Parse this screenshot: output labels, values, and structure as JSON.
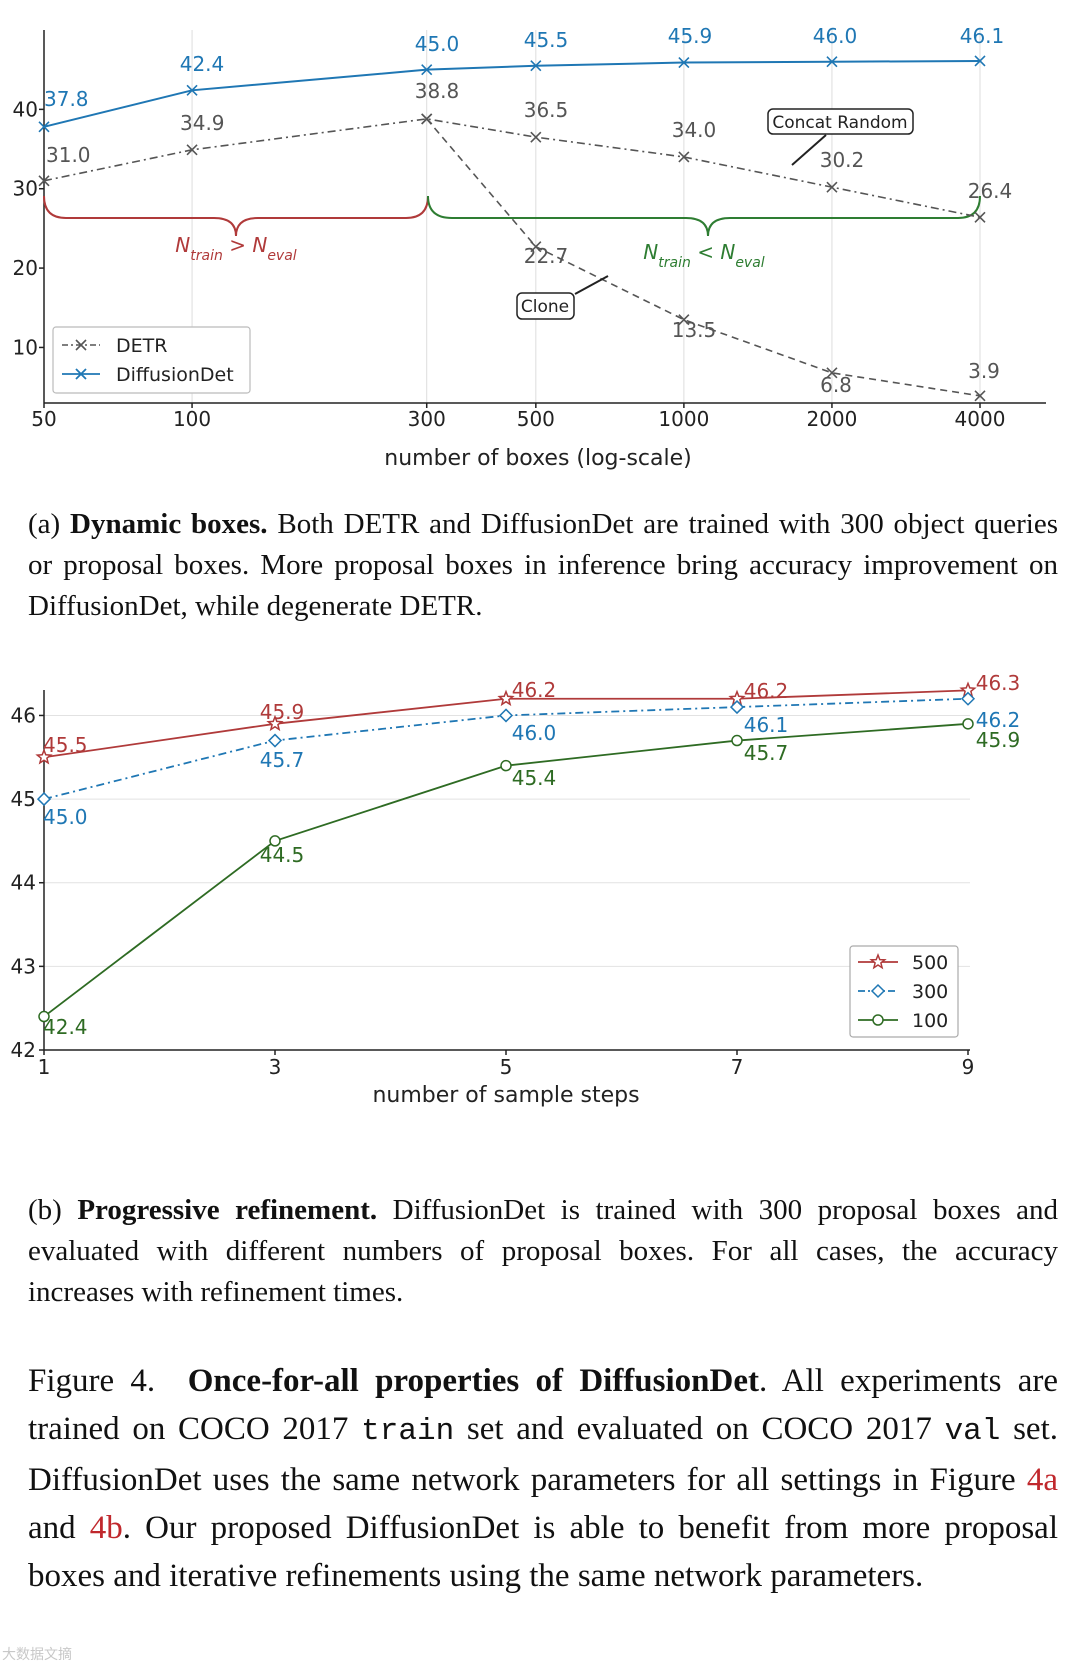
{
  "chart_data": [
    {
      "type": "line",
      "id": "4a",
      "xscale": "log",
      "x": [
        50,
        100,
        300,
        500,
        1000,
        2000,
        4000
      ],
      "tick_labels": [
        "50",
        "100",
        "300",
        "500",
        "1000",
        "2000",
        "4000"
      ],
      "xlabel": "number of boxes (log-scale)",
      "ylabel": "",
      "ylim": [
        3,
        50
      ],
      "yticks": [
        10,
        20,
        30,
        40
      ],
      "series": [
        {
          "name": "DETR",
          "color": "#555555",
          "marker": "x",
          "dash": "dashdot",
          "values": [
            31.0,
            34.9,
            38.8,
            36.5,
            34.0,
            30.2,
            26.4
          ]
        },
        {
          "name": "DETR",
          "color": "#555555",
          "marker": "x",
          "dash": "dashed",
          "x": [
            300,
            500,
            1000,
            2000,
            4000
          ],
          "values": [
            38.8,
            22.7,
            13.5,
            6.8,
            3.9
          ]
        },
        {
          "name": "DiffusionDet",
          "color": "#1f77b4",
          "marker": "x",
          "dash": "solid",
          "values": [
            37.8,
            42.4,
            45.0,
            45.5,
            45.9,
            46.0,
            46.1
          ]
        }
      ],
      "data_labels": {
        "detr_concat": [
          "31.0",
          "34.9",
          "38.8",
          "36.5",
          "34.0",
          "30.2",
          "26.4"
        ],
        "detr_clone": [
          "22.7",
          "13.5",
          "6.8",
          "3.9"
        ],
        "diffusiondet": [
          "37.8",
          "42.4",
          "45.0",
          "45.5",
          "45.9",
          "46.0",
          "46.1"
        ]
      },
      "annotations": {
        "concat": "Concat Random",
        "clone": "Clone",
        "brace_left": {
          "base": "N",
          "sub1": "train",
          "op": " > ",
          "sub2": "eval",
          "color": "#b03a3a"
        },
        "brace_right": {
          "base": "N",
          "sub1": "train",
          "op": " < ",
          "sub2": "eval",
          "color": "#2e7d32"
        }
      },
      "legend": {
        "position": "bottom-left",
        "entries": [
          "DETR",
          "DiffusionDet"
        ]
      }
    },
    {
      "type": "line",
      "id": "4b",
      "x": [
        1,
        3,
        5,
        7,
        9
      ],
      "tick_labels": [
        "1",
        "3",
        "5",
        "7",
        "9"
      ],
      "xlabel": "number of sample steps",
      "ylabel": "",
      "ylim": [
        42,
        46.4
      ],
      "yticks": [
        42,
        43,
        44,
        45,
        46
      ],
      "grid": true,
      "series": [
        {
          "name": "500",
          "color": "#b03a3a",
          "marker": "star",
          "dash": "solid",
          "values": [
            45.5,
            45.9,
            46.2,
            46.2,
            46.3
          ]
        },
        {
          "name": "300",
          "color": "#1f77b4",
          "marker": "diamond",
          "dash": "dashdot",
          "values": [
            45.0,
            45.7,
            46.0,
            46.1,
            46.2
          ]
        },
        {
          "name": "100",
          "color": "#2e6b23",
          "marker": "circle",
          "dash": "solid",
          "values": [
            42.4,
            44.5,
            45.4,
            45.7,
            45.9
          ]
        }
      ],
      "data_labels": {
        "s500": [
          "45.5",
          "45.9",
          "46.2",
          "46.2",
          "46.3"
        ],
        "s300": [
          "45.0",
          "45.7",
          "46.0",
          "46.1",
          "46.2"
        ],
        "s100": [
          "42.4",
          "44.5",
          "45.4",
          "45.7",
          "45.9"
        ]
      },
      "legend": {
        "position": "lower-right",
        "entries": [
          "500",
          "300",
          "100"
        ]
      }
    }
  ],
  "captions": {
    "a": {
      "prefix": "(a) ",
      "bold": "Dynamic boxes.",
      "text": " Both DETR and DiffusionDet are trained with 300 object queries or proposal boxes. More proposal boxes in inference bring accuracy improvement on DiffusionDet, while degenerate DETR."
    },
    "b": {
      "prefix": "(b) ",
      "bold": "Progressive refinement.",
      "text": " DiffusionDet is trained with 300 proposal boxes and evaluated with different numbers of proposal boxes. For all cases, the accuracy increases with refinement times."
    }
  },
  "figure": {
    "label": "Figure 4.",
    "title": "Once-for-all properties of DiffusionDet",
    "t1": ". All experiments are trained on COCO 2017 ",
    "code1": "train",
    "t2": " set and evaluated on COCO 2017 ",
    "code2": "val",
    "t3": " set. DiffusionDet uses the same network parameters for all settings in Figure ",
    "ref1": "4a",
    "t4": " and ",
    "ref2": "4b",
    "t5": ". Our proposed DiffusionDet is able to benefit from more proposal boxes and iterative refinements using the same network parameters."
  },
  "watermark": "大数据文摘"
}
